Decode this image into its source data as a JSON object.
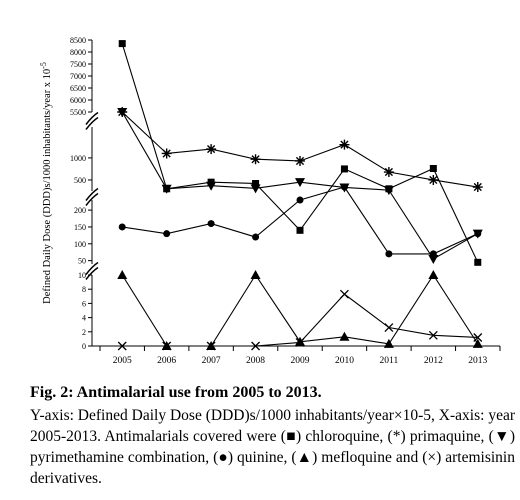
{
  "chart_data": {
    "type": "line",
    "ylabel": "Defined Daily Dose (DDD)s/1000 inhabitants/year x 10",
    "ylabel_exponent": "-5",
    "x": [
      "2005",
      "2006",
      "2007",
      "2008",
      "2009",
      "2010",
      "2011",
      "2012",
      "2013"
    ],
    "y_axis_style": "broken",
    "y_segments": [
      {
        "ylim": [
          5500,
          8500
        ],
        "ticks": [
          "5500",
          "6000",
          "6500",
          "7000",
          "7500",
          "8000",
          "8500"
        ]
      },
      {
        "ylim": [
          250,
          1700
        ],
        "ticks": [
          "500",
          "1000"
        ]
      },
      {
        "ylim": [
          40,
          230
        ],
        "ticks": [
          "50",
          "100",
          "150",
          "200"
        ]
      },
      {
        "ylim": [
          0,
          10
        ],
        "ticks": [
          "0",
          "2",
          "4",
          "6",
          "8",
          "10"
        ]
      }
    ],
    "series": [
      {
        "marker": "square",
        "values": [
          8350,
          300,
          450,
          420,
          140,
          750,
          300,
          760,
          45
        ]
      },
      {
        "marker": "asterisk",
        "values": [
          5400,
          1100,
          1200,
          970,
          930,
          1300,
          680,
          500,
          340
        ]
      },
      {
        "marker": "triangle-down",
        "values": [
          5400,
          300,
          370,
          310,
          450,
          330,
          270,
          55,
          130
        ]
      },
      {
        "marker": "circle",
        "values": [
          150,
          130,
          160,
          120,
          230,
          340,
          70,
          70,
          130
        ]
      },
      {
        "marker": "triangle-up",
        "values": [
          10,
          0,
          0,
          10,
          0.6,
          1.3,
          0.3,
          10,
          0.3
        ]
      },
      {
        "marker": "cross",
        "values": [
          0,
          0,
          0,
          0,
          0.5,
          7.3,
          2.6,
          1.5,
          1.2
        ]
      }
    ]
  },
  "caption": {
    "title": "Fig. 2: Antimalarial use from 2005 to 2013.",
    "body": "Y-axis: Defined Daily Dose (DDD)s/1000 inhabitants/year×10-5, X-axis: year 2005-2013. Antimalarials covered were (■) chloroquine, (*) primaquine, (▼) pyrimethamine combination, (●) quinine, (▲) mefloquine and (×) artemisinin derivatives."
  }
}
